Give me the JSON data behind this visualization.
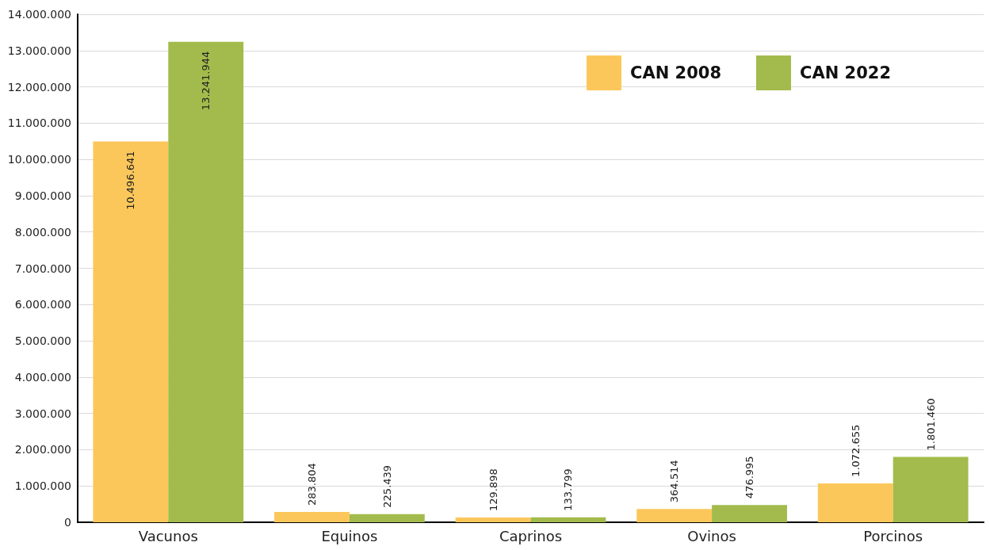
{
  "chart_data": {
    "type": "bar",
    "categories": [
      "Vacunos",
      "Equinos",
      "Caprinos",
      "Ovinos",
      "Porcinos"
    ],
    "series": [
      {
        "name": "CAN 2008",
        "color": "#fcc75a",
        "values": [
          10496641,
          283804,
          129898,
          364514,
          1072655
        ],
        "value_labels": [
          "10.496.641",
          "283.804",
          "129.898",
          "364.514",
          "1.072.655"
        ]
      },
      {
        "name": "CAN 2022",
        "color": "#a3bb4c",
        "values": [
          13241944,
          225439,
          133799,
          476995,
          1801460
        ],
        "value_labels": [
          "13.241.944",
          "225.439",
          "133.799",
          "476.995",
          "1.801.460"
        ]
      }
    ],
    "ylim": [
      0,
      14000000
    ],
    "yticks": [
      0,
      {
        "value": 1000000,
        "label": "1.000.000"
      },
      {
        "value": 2000000,
        "label": "2.000.000"
      },
      {
        "value": 3000000,
        "label": "3.000.000"
      },
      {
        "value": 4000000,
        "label": "4.000.000"
      },
      {
        "value": 5000000,
        "label": "5.000.000"
      },
      {
        "value": 6000000,
        "label": "6.000.000"
      },
      {
        "value": 7000000,
        "label": "7.000.000"
      },
      {
        "value": 8000000,
        "label": "8.000.000"
      },
      {
        "value": 9000000,
        "label": "9.000.000"
      },
      {
        "value": 10000000,
        "label": "10.000.000"
      },
      {
        "value": 11000000,
        "label": "11.000.000"
      },
      {
        "value": 12000000,
        "label": "12.000.000"
      },
      {
        "value": 13000000,
        "label": "13.000.000"
      },
      {
        "value": 14000000,
        "label": "14.000.000"
      }
    ],
    "grid": "y",
    "legend": "top right"
  }
}
